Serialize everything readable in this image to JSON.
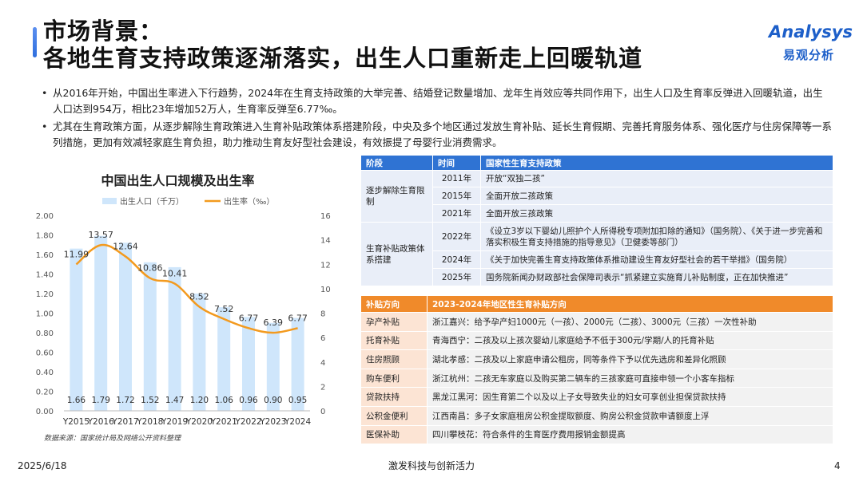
{
  "header": {
    "title_line1": "市场背景：",
    "title_line2": "各地生育支持政策逐渐落实，出生人口重新走上回暖轨道",
    "logo_en": "Analysys",
    "logo_cn": "易观分析"
  },
  "bullets": [
    "从2016年开始，中国出生率进入下行趋势，2024年在生育支持政策的大举完善、结婚登记数量增加、龙年生肖效应等共同作用下，出生人口及生育率反弹进入回暖轨道，出生人口达到954万，相比23年增加52万人，生育率反弹至6.77‰。",
    "尤其在生育政策方面，从逐步解除生育政策进入生育补贴政策体系搭建阶段，中央及多个地区通过发放生育补贴、延长生育假期、完善托育服务体系、强化医疗与住房保障等一系列措施，更加有效减轻家庭生育负担，助力推动生育友好型社会建设，有效振提了母婴行业消费需求。"
  ],
  "chart_data": {
    "type": "bar",
    "title": "中国出生人口规模及出生率",
    "categories": [
      "Y2015",
      "Y2016",
      "Y2017",
      "Y2018",
      "Y2019",
      "Y2020",
      "Y2021",
      "Y2022",
      "Y2023",
      "Y2024"
    ],
    "series": [
      {
        "name": "出生人口（千万）",
        "type": "bar",
        "axis": "left",
        "color": "#cfe6fb",
        "values": [
          1.66,
          1.79,
          1.72,
          1.52,
          1.47,
          1.2,
          1.06,
          0.96,
          0.9,
          0.95
        ]
      },
      {
        "name": "出生率（‰）",
        "type": "line",
        "axis": "right",
        "color": "#f39a1e",
        "values": [
          11.99,
          13.57,
          12.64,
          10.86,
          10.41,
          8.52,
          7.52,
          6.77,
          6.39,
          6.77
        ]
      }
    ],
    "left_axis": {
      "ylim": [
        0,
        2.0
      ],
      "ticks": [
        "0.00",
        "0.20",
        "0.40",
        "0.60",
        "0.80",
        "1.00",
        "1.20",
        "1.40",
        "1.60",
        "1.80",
        "2.00"
      ]
    },
    "right_axis": {
      "ylim": [
        0,
        16
      ],
      "ticks": [
        "0",
        "2",
        "4",
        "6",
        "8",
        "10",
        "12",
        "14",
        "16"
      ]
    },
    "legend": "top",
    "grid": false
  },
  "source": "数据来源：国家统计局及网络公开资料整理",
  "policy_table": {
    "headers": [
      "阶段",
      "时间",
      "国家性生育支持政策"
    ],
    "groups": [
      {
        "stage": "逐步解除生育限制",
        "rows": [
          {
            "year": "2011年",
            "policy": "开放“双独二孩”"
          },
          {
            "year": "2015年",
            "policy": "全面开放二孩政策"
          },
          {
            "year": "2021年",
            "policy": "全面开放三孩政策"
          }
        ]
      },
      {
        "stage": "生育补贴政策体系搭建",
        "rows": [
          {
            "year": "2022年",
            "policy": "《设立3岁以下婴幼儿照护个人所得税专项附加扣除的通知》（国务院）、《关于进一步完善和落实积极生育支持措施的指导意见》（卫健委等部门）"
          },
          {
            "year": "2024年",
            "policy": "《关于加快完善生育支持政策体系推动建设生育友好型社会的若干举措》（国务院）"
          },
          {
            "year": "2025年",
            "policy": "国务院新闻办财政部社会保障司表示“抓紧建立实施育儿补贴制度，正在加快推进”"
          }
        ]
      }
    ]
  },
  "subsidy_table": {
    "headers": [
      "补贴方向",
      "2023-2024年地区性生育补贴方向"
    ],
    "rows": [
      {
        "category": "孕产补贴",
        "detail": "浙江嘉兴：给予孕产妇1000元（一孩）、2000元（二孩）、3000元（三孩）一次性补助"
      },
      {
        "category": "托育补贴",
        "detail": "青海西宁：二孩及以上孩次婴幼儿家庭给予不低于300元/学期/人的托育补贴"
      },
      {
        "category": "住房照顾",
        "detail": "湖北孝感：二孩及以上家庭申请公租房，同等条件下予以优先选房和差异化照顾"
      },
      {
        "category": "购车便利",
        "detail": "浙江杭州：二孩无车家庭以及购买第二辆车的三孩家庭可直接申领一个小客车指标"
      },
      {
        "category": "贷款扶持",
        "detail": "黑龙江黑河：因生育第二个以及以上子女导致失业的妇女可享创业担保贷款扶持"
      },
      {
        "category": "公积金便利",
        "detail": "江西南昌：多子女家庭租房公积金提取额度、购房公积金贷款申请额度上浮"
      },
      {
        "category": "医保补助",
        "detail": "四川攀枝花：符合条件的生育医疗费用报销金额提高"
      }
    ]
  },
  "footer": {
    "date": "2025/6/18",
    "slogan": "激发科技与创新活力",
    "page": "4"
  }
}
